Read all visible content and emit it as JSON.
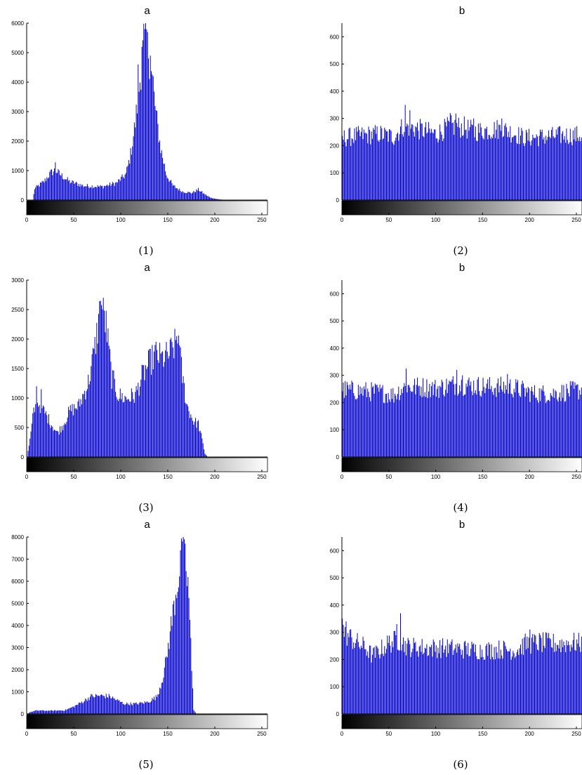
{
  "figure": {
    "captions": [
      "(1)",
      "(2)",
      "(3)",
      "(4)",
      "(5)",
      "(6)"
    ],
    "colors": {
      "bars": "#0000cc",
      "axis": "#000000",
      "background": "#ffffff"
    }
  },
  "chart_data": [
    {
      "type": "bar",
      "title": "a",
      "xlabel": "",
      "ylabel": "",
      "xlim": [
        0,
        256
      ],
      "ylim": [
        0,
        6000
      ],
      "xticks": [
        0,
        50,
        100,
        150,
        200,
        250
      ],
      "yticks": [
        0,
        1000,
        2000,
        3000,
        4000,
        5000,
        6000
      ],
      "colorbar": "grayscale",
      "grid": false,
      "profile": [
        [
          0,
          0
        ],
        [
          6,
          0
        ],
        [
          8,
          400
        ],
        [
          12,
          500
        ],
        [
          18,
          650
        ],
        [
          25,
          950
        ],
        [
          30,
          1050
        ],
        [
          35,
          900
        ],
        [
          45,
          650
        ],
        [
          60,
          500
        ],
        [
          80,
          470
        ],
        [
          95,
          600
        ],
        [
          105,
          900
        ],
        [
          110,
          1600
        ],
        [
          115,
          2700
        ],
        [
          120,
          4200
        ],
        [
          124,
          5600
        ],
        [
          127,
          5800
        ],
        [
          130,
          5000
        ],
        [
          133,
          4200
        ],
        [
          137,
          3000
        ],
        [
          142,
          1800
        ],
        [
          148,
          900
        ],
        [
          155,
          500
        ],
        [
          165,
          300
        ],
        [
          175,
          250
        ],
        [
          182,
          370
        ],
        [
          188,
          220
        ],
        [
          195,
          80
        ],
        [
          205,
          20
        ],
        [
          215,
          0
        ],
        [
          256,
          0
        ]
      ],
      "spikes": [
        [
          118,
          4600
        ],
        [
          122,
          5200
        ],
        [
          125,
          5800
        ],
        [
          128,
          5700
        ],
        [
          131,
          4900
        ],
        [
          134,
          4200
        ],
        [
          30,
          1280
        ]
      ]
    },
    {
      "type": "bar",
      "title": "b",
      "xlabel": "",
      "ylabel": "",
      "xlim": [
        0,
        256
      ],
      "ylim": [
        0,
        650
      ],
      "xticks": [
        0,
        50,
        100,
        150,
        200,
        250
      ],
      "yticks": [
        0,
        100,
        200,
        300,
        400,
        500,
        600
      ],
      "colorbar": "grayscale",
      "grid": false,
      "profile": [
        [
          0,
          235
        ],
        [
          20,
          245
        ],
        [
          40,
          250
        ],
        [
          55,
          240
        ],
        [
          65,
          280
        ],
        [
          75,
          275
        ],
        [
          90,
          260
        ],
        [
          100,
          250
        ],
        [
          115,
          280
        ],
        [
          130,
          275
        ],
        [
          140,
          260
        ],
        [
          155,
          265
        ],
        [
          170,
          270
        ],
        [
          185,
          250
        ],
        [
          195,
          235
        ],
        [
          215,
          240
        ],
        [
          235,
          245
        ],
        [
          256,
          245
        ]
      ],
      "spikes": [
        [
          67,
          350
        ],
        [
          72,
          330
        ],
        [
          115,
          320
        ],
        [
          121,
          318
        ],
        [
          140,
          300
        ],
        [
          170,
          300
        ]
      ]
    },
    {
      "type": "bar",
      "title": "a",
      "xlabel": "",
      "ylabel": "",
      "xlim": [
        0,
        256
      ],
      "ylim": [
        0,
        3000
      ],
      "xticks": [
        0,
        50,
        100,
        150,
        200,
        250
      ],
      "yticks": [
        0,
        500,
        1000,
        1500,
        2000,
        2500,
        3000
      ],
      "colorbar": "grayscale",
      "grid": false,
      "profile": [
        [
          0,
          0
        ],
        [
          3,
          300
        ],
        [
          7,
          800
        ],
        [
          12,
          950
        ],
        [
          18,
          800
        ],
        [
          25,
          600
        ],
        [
          32,
          420
        ],
        [
          38,
          550
        ],
        [
          45,
          800
        ],
        [
          55,
          900
        ],
        [
          65,
          1300
        ],
        [
          72,
          1900
        ],
        [
          77,
          2500
        ],
        [
          80,
          2650
        ],
        [
          84,
          2300
        ],
        [
          90,
          1400
        ],
        [
          97,
          1080
        ],
        [
          105,
          1020
        ],
        [
          115,
          1080
        ],
        [
          122,
          1400
        ],
        [
          130,
          1650
        ],
        [
          137,
          1800
        ],
        [
          143,
          1720
        ],
        [
          150,
          1780
        ],
        [
          157,
          1950
        ],
        [
          161,
          2000
        ],
        [
          165,
          1400
        ],
        [
          170,
          900
        ],
        [
          177,
          620
        ],
        [
          182,
          580
        ],
        [
          186,
          300
        ],
        [
          189,
          60
        ],
        [
          192,
          0
        ],
        [
          256,
          0
        ]
      ],
      "spikes": [
        [
          10,
          1200
        ],
        [
          15,
          1150
        ],
        [
          78,
          2650
        ],
        [
          81,
          2700
        ],
        [
          159,
          2050
        ],
        [
          161,
          2060
        ],
        [
          136,
          1900
        ]
      ]
    },
    {
      "type": "bar",
      "title": "b",
      "xlabel": "",
      "ylabel": "",
      "xlim": [
        0,
        256
      ],
      "ylim": [
        0,
        650
      ],
      "xticks": [
        0,
        50,
        100,
        150,
        200,
        250
      ],
      "yticks": [
        0,
        100,
        200,
        300,
        400,
        500,
        600
      ],
      "colorbar": "grayscale",
      "grid": false,
      "profile": [
        [
          0,
          255
        ],
        [
          20,
          250
        ],
        [
          40,
          245
        ],
        [
          55,
          235
        ],
        [
          65,
          265
        ],
        [
          85,
          265
        ],
        [
          100,
          260
        ],
        [
          120,
          275
        ],
        [
          140,
          270
        ],
        [
          160,
          265
        ],
        [
          180,
          265
        ],
        [
          190,
          255
        ],
        [
          205,
          240
        ],
        [
          225,
          240
        ],
        [
          245,
          250
        ],
        [
          256,
          255
        ]
      ],
      "spikes": [
        [
          68,
          325
        ],
        [
          122,
          320
        ],
        [
          176,
          305
        ],
        [
          128,
          300
        ]
      ]
    },
    {
      "type": "bar",
      "title": "a",
      "xlabel": "",
      "ylabel": "",
      "xlim": [
        0,
        256
      ],
      "ylim": [
        0,
        8000
      ],
      "xticks": [
        0,
        50,
        100,
        150,
        200,
        250
      ],
      "yticks": [
        0,
        1000,
        2000,
        3000,
        4000,
        5000,
        6000,
        7000,
        8000
      ],
      "colorbar": "grayscale",
      "grid": false,
      "profile": [
        [
          0,
          0
        ],
        [
          3,
          80
        ],
        [
          10,
          160
        ],
        [
          25,
          150
        ],
        [
          40,
          170
        ],
        [
          50,
          350
        ],
        [
          60,
          600
        ],
        [
          68,
          820
        ],
        [
          78,
          850
        ],
        [
          88,
          820
        ],
        [
          95,
          650
        ],
        [
          103,
          480
        ],
        [
          115,
          470
        ],
        [
          128,
          550
        ],
        [
          138,
          800
        ],
        [
          143,
          1500
        ],
        [
          148,
          2500
        ],
        [
          152,
          3800
        ],
        [
          156,
          5000
        ],
        [
          160,
          6200
        ],
        [
          164,
          7200
        ],
        [
          166,
          7600
        ],
        [
          169,
          6800
        ],
        [
          172,
          5500
        ],
        [
          175,
          2000
        ],
        [
          177,
          200
        ],
        [
          180,
          0
        ],
        [
          256,
          0
        ]
      ],
      "spikes": [
        [
          165,
          7800
        ],
        [
          167,
          7900
        ],
        [
          163,
          7400
        ]
      ]
    },
    {
      "type": "bar",
      "title": "b",
      "xlabel": "",
      "ylabel": "",
      "xlim": [
        0,
        256
      ],
      "ylim": [
        0,
        650
      ],
      "xticks": [
        0,
        50,
        100,
        150,
        200,
        250
      ],
      "yticks": [
        0,
        100,
        200,
        300,
        400,
        500,
        600
      ],
      "colorbar": "grayscale",
      "grid": false,
      "profile": [
        [
          0,
          320
        ],
        [
          5,
          300
        ],
        [
          15,
          270
        ],
        [
          25,
          250
        ],
        [
          32,
          220
        ],
        [
          40,
          240
        ],
        [
          50,
          270
        ],
        [
          60,
          280
        ],
        [
          70,
          255
        ],
        [
          90,
          250
        ],
        [
          110,
          250
        ],
        [
          130,
          245
        ],
        [
          150,
          240
        ],
        [
          170,
          245
        ],
        [
          185,
          240
        ],
        [
          195,
          265
        ],
        [
          210,
          270
        ],
        [
          230,
          265
        ],
        [
          245,
          270
        ],
        [
          256,
          265
        ]
      ],
      "spikes": [
        [
          0,
          350
        ],
        [
          4,
          340
        ],
        [
          62,
          370
        ],
        [
          58,
          330
        ],
        [
          200,
          310
        ]
      ]
    }
  ]
}
